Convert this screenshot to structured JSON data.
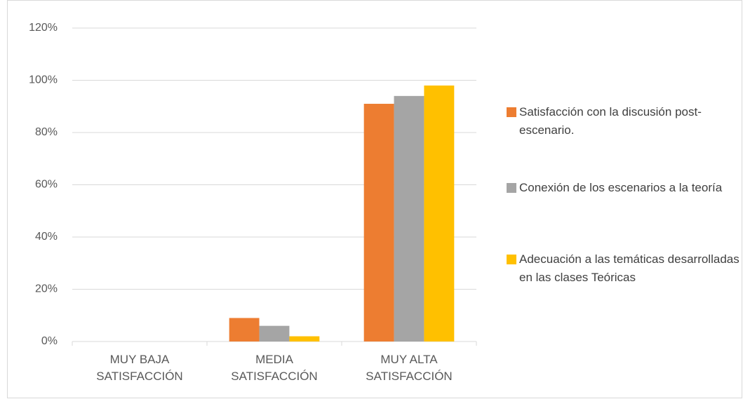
{
  "chart_data": {
    "type": "bar",
    "categories": [
      "MUY BAJA SATISFACCIÓN",
      "MEDIA SATISFACCIÓN",
      "MUY ALTA SATISFACCIÓN"
    ],
    "series": [
      {
        "name": "Satisfacción con la discusión post-escenario.",
        "color": "#ed7d31",
        "values": [
          0,
          9,
          91
        ]
      },
      {
        "name": "Conexión de los escenarios a la teoría",
        "color": "#a5a5a5",
        "values": [
          0,
          6,
          94
        ]
      },
      {
        "name": "Adecuación a las temáticas desarrolladas en las clases Teóricas",
        "color": "#ffc000",
        "values": [
          0,
          2,
          98
        ]
      }
    ],
    "ylim": [
      0,
      120
    ],
    "yticks": [
      {
        "value": 0,
        "label": "0%"
      },
      {
        "value": 20,
        "label": "20%"
      },
      {
        "value": 40,
        "label": "40%"
      },
      {
        "value": 60,
        "label": "60%"
      },
      {
        "value": 80,
        "label": "80%"
      },
      {
        "value": 100,
        "label": "100%"
      },
      {
        "value": 120,
        "label": "120%"
      }
    ],
    "grid": true,
    "legend": "right"
  }
}
